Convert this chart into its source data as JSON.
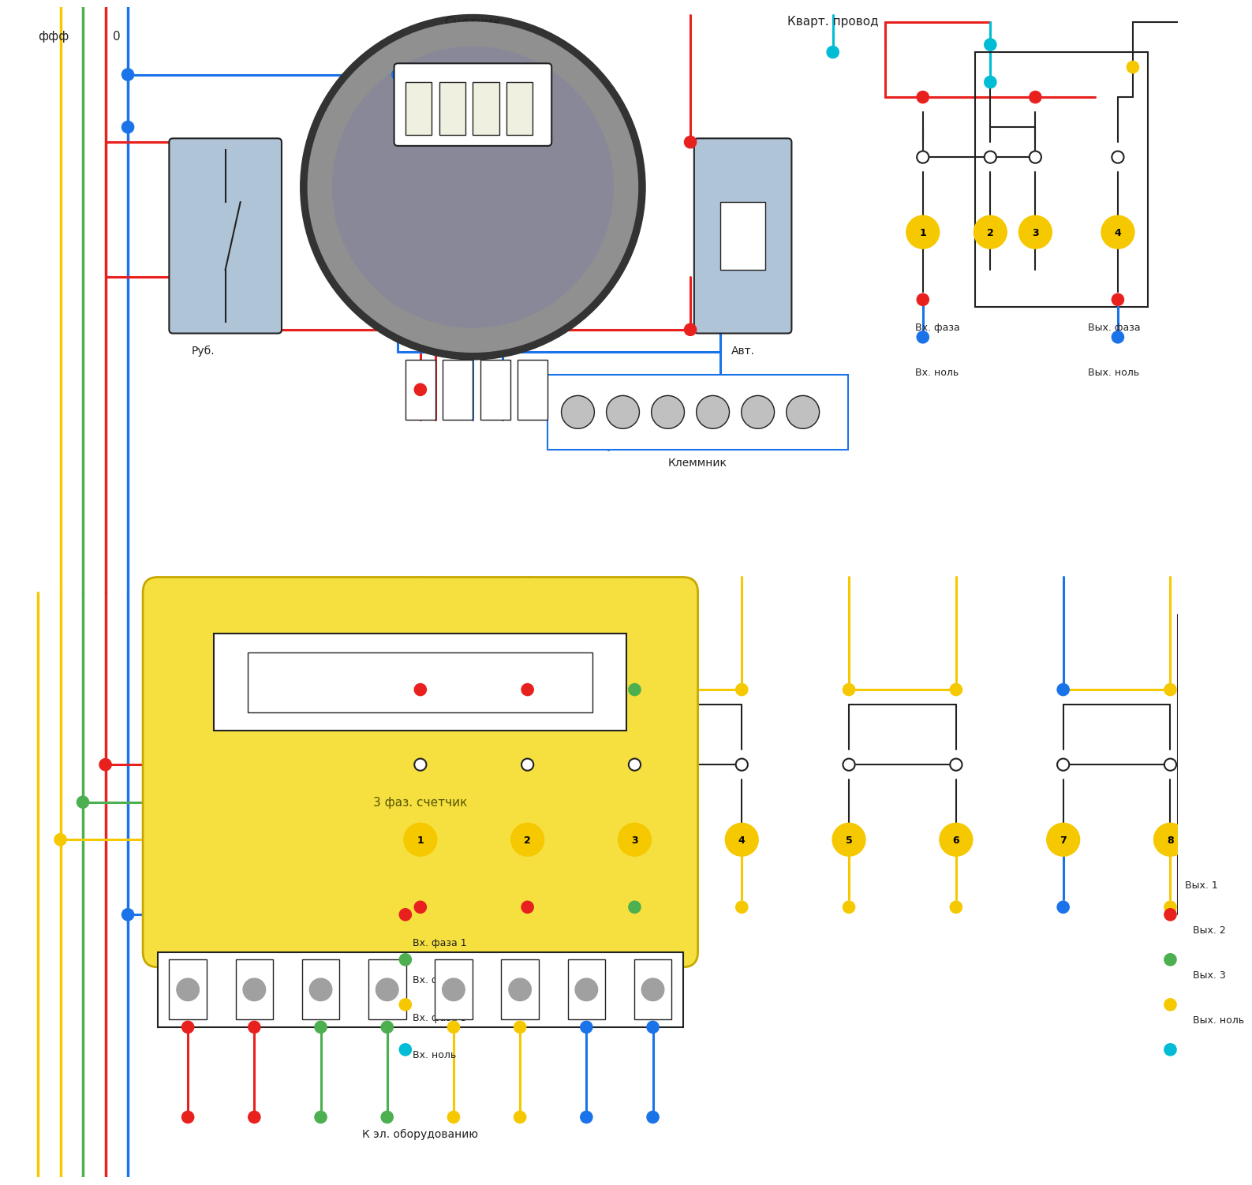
{
  "bg_color": "#ffffff",
  "title": "",
  "colors": {
    "red": "#e8201e",
    "blue": "#1a73e8",
    "yellow": "#f5c800",
    "green": "#4caf50",
    "cyan": "#00bcd4",
    "gray": "#a0a0b0",
    "dark": "#222222",
    "light_blue": "#7ec8e3",
    "yellow_node": "#f5c800",
    "wire_red": "#e8201e",
    "wire_blue": "#1a73e8",
    "wire_yellow": "#f5c800",
    "wire_green": "#4caf50",
    "breaker_bg": "#b0c4d8"
  },
  "top_labels": {
    "fff": "ффф",
    "zero": "0",
    "schetnik": "Счетчик",
    "kvart": "Кварт. провод",
    "rub": "Руб.",
    "avt": "Авт.",
    "klemm": "Клеммник"
  },
  "bottom_labels": {
    "sfaz": "3 фаз. счетчик",
    "k_el": "К эл. оборудованию",
    "vx_faza": "Вх. фаза",
    "vx_nol": "Вх. ноль",
    "vx_faza1": "Вх. фаза 1",
    "vx_faza2": "Вх. фаза 2",
    "vx_faza3": "Вх. фаза 3",
    "vx_nol2": "Вх. ноль",
    "vyx_faza": "Вых. фаза",
    "vyx_nol": "Вых. ноль",
    "vyx1": "Вых. 1",
    "vyx2": "Вых. 2",
    "vyx3": "Вых. 3",
    "vyx_nol2": "Вых. ноль"
  }
}
